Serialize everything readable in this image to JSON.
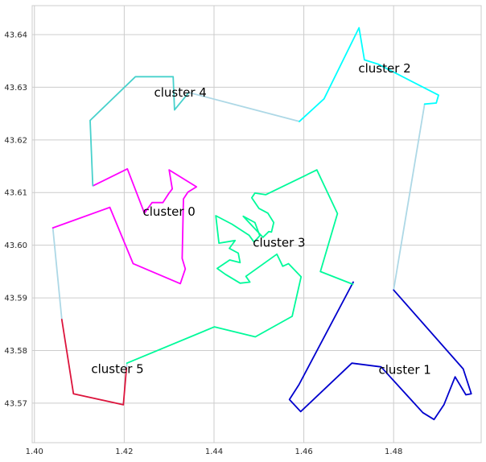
{
  "chart_data": {
    "type": "line",
    "title": "",
    "xlabel": "",
    "ylabel": "",
    "xlim": [
      1.3995,
      1.4995
    ],
    "ylim": [
      43.5625,
      43.6455
    ],
    "xticks": [
      "1.40",
      "1.42",
      "1.44",
      "1.46",
      "1.48"
    ],
    "yticks": [
      "43.57",
      "43.58",
      "43.59",
      "43.60",
      "43.61",
      "43.62",
      "43.63",
      "43.64"
    ],
    "grid": true,
    "series": [
      {
        "name": "cluster 0",
        "color": "#ff00ff",
        "label_at": [
          1.43,
          43.6064
        ],
        "points": [
          [
            1.4041,
            43.6033
          ],
          [
            1.4168,
            43.6072
          ],
          [
            1.422,
            43.5965
          ],
          [
            1.4325,
            43.5927
          ],
          [
            1.4336,
            43.5955
          ],
          [
            1.4329,
            43.5975
          ],
          [
            1.4332,
            43.6088
          ],
          [
            1.4342,
            43.6101
          ],
          [
            1.4361,
            43.6111
          ],
          [
            1.43,
            43.6143
          ],
          [
            1.4307,
            43.6107
          ],
          [
            1.4299,
            43.6098
          ],
          [
            1.4286,
            43.6081
          ],
          [
            1.4262,
            43.6081
          ],
          [
            1.4245,
            43.6061
          ],
          [
            1.4207,
            43.6145
          ],
          [
            1.4131,
            43.6113
          ]
        ]
      },
      {
        "name": "cluster 1",
        "color": "#0000cd",
        "label_at": [
          1.4825,
          43.5763
        ],
        "points": [
          [
            1.471,
            43.593
          ],
          [
            1.4589,
            43.5735
          ],
          [
            1.4568,
            43.5707
          ],
          [
            1.4593,
            43.5684
          ],
          [
            1.4707,
            43.5776
          ],
          [
            1.4772,
            43.5769
          ],
          [
            1.4865,
            43.5682
          ],
          [
            1.489,
            43.5669
          ],
          [
            1.4912,
            43.5697
          ],
          [
            1.4937,
            43.575
          ],
          [
            1.4961,
            43.5716
          ],
          [
            1.4973,
            43.5718
          ],
          [
            1.4955,
            43.5765
          ],
          [
            1.48,
            43.5915
          ]
        ]
      },
      {
        "name": "cluster 2",
        "color": "#00ffff",
        "label_at": [
          1.478,
          43.6336
        ],
        "points": [
          [
            1.459,
            43.6235
          ],
          [
            1.4645,
            43.6278
          ],
          [
            1.4723,
            43.6413
          ],
          [
            1.4735,
            43.6352
          ],
          [
            1.4765,
            43.6344
          ],
          [
            1.49,
            43.6285
          ],
          [
            1.4895,
            43.627
          ],
          [
            1.4869,
            43.6268
          ]
        ]
      },
      {
        "name": "cluster 3",
        "color": "#00fa9a",
        "label_at": [
          1.4545,
          43.6005
        ],
        "points": [
          [
            1.4206,
            43.5776
          ],
          [
            1.4401,
            43.5845
          ],
          [
            1.4492,
            43.5826
          ],
          [
            1.4574,
            43.5865
          ],
          [
            1.4594,
            43.594
          ],
          [
            1.4566,
            43.5965
          ],
          [
            1.4553,
            43.596
          ],
          [
            1.454,
            43.5983
          ],
          [
            1.4471,
            43.5941
          ],
          [
            1.448,
            43.593
          ],
          [
            1.4458,
            43.5928
          ],
          [
            1.4425,
            43.5945
          ],
          [
            1.4407,
            43.5956
          ],
          [
            1.4435,
            43.5972
          ],
          [
            1.4458,
            43.5967
          ],
          [
            1.4454,
            43.5985
          ],
          [
            1.4434,
            43.5994
          ],
          [
            1.4447,
            43.6009
          ],
          [
            1.4411,
            43.6004
          ],
          [
            1.4404,
            43.6056
          ],
          [
            1.444,
            43.604
          ],
          [
            1.4478,
            43.6019
          ],
          [
            1.4489,
            43.6006
          ],
          [
            1.4502,
            43.6018
          ],
          [
            1.4491,
            43.6043
          ],
          [
            1.4465,
            43.6055
          ],
          [
            1.4509,
            43.6015
          ],
          [
            1.4522,
            43.6026
          ],
          [
            1.4528,
            43.6025
          ],
          [
            1.4533,
            43.6043
          ],
          [
            1.452,
            43.6061
          ],
          [
            1.45,
            43.607
          ],
          [
            1.4484,
            43.609
          ],
          [
            1.4491,
            43.6099
          ],
          [
            1.4515,
            43.6096
          ],
          [
            1.4629,
            43.6143
          ],
          [
            1.4675,
            43.606
          ],
          [
            1.4637,
            43.595
          ],
          [
            1.4709,
            43.5926
          ]
        ]
      },
      {
        "name": "cluster 4",
        "color": "#48d1cc",
        "label_at": [
          1.4325,
          43.629
        ],
        "points": [
          [
            1.4344,
            43.629
          ],
          [
            1.4312,
            43.6257
          ],
          [
            1.4309,
            43.632
          ],
          [
            1.4225,
            43.632
          ],
          [
            1.4124,
            43.6237
          ],
          [
            1.413,
            43.6113
          ]
        ]
      },
      {
        "name": "cluster 5",
        "color": "#dc143c",
        "label_at": [
          1.4185,
          43.5765
        ],
        "points": [
          [
            1.4061,
            43.5859
          ],
          [
            1.4087,
            43.5718
          ],
          [
            1.4198,
            43.5697
          ],
          [
            1.4205,
            43.5767
          ]
        ]
      }
    ],
    "connectors": {
      "color": "#add8e6",
      "segments": [
        [
          [
            1.4344,
            43.629
          ],
          [
            1.459,
            43.6235
          ]
        ],
        [
          [
            1.4869,
            43.6268
          ],
          [
            1.48,
            43.5915
          ]
        ],
        [
          [
            1.4709,
            43.5926
          ],
          [
            1.471,
            43.593
          ]
        ],
        [
          [
            1.4041,
            43.6033
          ],
          [
            1.4061,
            43.5859
          ]
        ],
        [
          [
            1.4205,
            43.5767
          ],
          [
            1.4206,
            43.5776
          ]
        ]
      ]
    }
  }
}
